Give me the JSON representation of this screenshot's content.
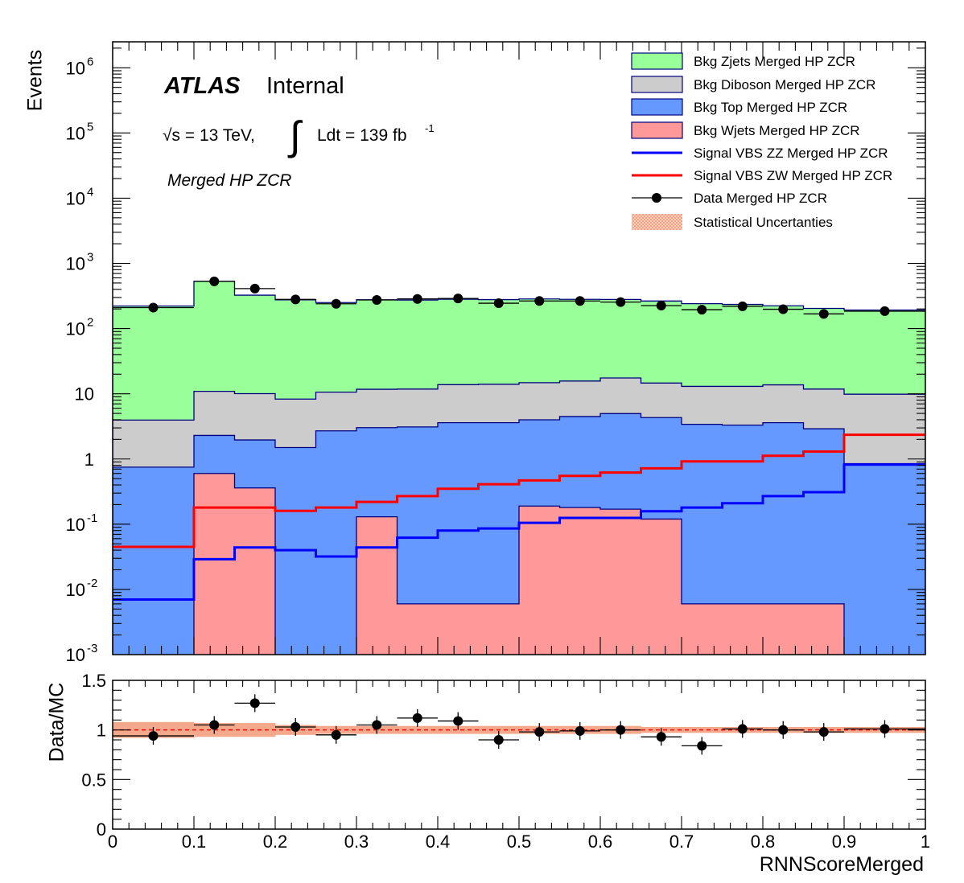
{
  "chart_data": [
    {
      "type": "bar",
      "subtype": "stacked-step-histogram",
      "bin_edges": [
        0,
        0.05,
        0.1,
        0.15,
        0.2,
        0.25,
        0.3,
        0.35,
        0.4,
        0.45,
        0.5,
        0.55,
        0.6,
        0.65,
        0.7,
        0.75,
        0.8,
        0.85,
        0.9,
        0.95,
        1
      ],
      "xlabel": "",
      "ylabel": "Events",
      "yscale": "log",
      "xlim": [
        0,
        1
      ],
      "ylim": [
        0.001,
        2500000
      ],
      "yticks": [
        {
          "label": "10",
          "sup": "-3",
          "value": 0.001
        },
        {
          "label": "10",
          "sup": "-2",
          "value": 0.01
        },
        {
          "label": "10",
          "sup": "-1",
          "value": 0.1
        },
        {
          "label": "1",
          "sup": "",
          "value": 1
        },
        {
          "label": "10",
          "sup": "",
          "value": 10
        },
        {
          "label": "10",
          "sup": "2",
          "value": 100
        },
        {
          "label": "10",
          "sup": "3",
          "value": 1000
        },
        {
          "label": "10",
          "sup": "4",
          "value": 10000
        },
        {
          "label": "10",
          "sup": "5",
          "value": 100000
        },
        {
          "label": "10",
          "sup": "6",
          "value": 1000000
        }
      ],
      "stacked_series": [
        {
          "name": "Bkg Wjets Merged HP ZCR",
          "color": "#ff9999",
          "values": [
            0,
            0,
            0.6,
            0.36,
            0,
            0,
            0.13,
            0.006,
            0.006,
            0.006,
            0.19,
            0.18,
            0.17,
            0.12,
            0.006,
            0.006,
            0.006,
            0.006,
            0,
            0
          ]
        },
        {
          "name": "Bkg Top Merged HP ZCR",
          "color": "#6699ff",
          "values": [
            0.75,
            0.75,
            1.7,
            1.6,
            1.5,
            2.7,
            2.9,
            3.1,
            3.6,
            3.6,
            3.8,
            4.3,
            4.8,
            4.2,
            3.4,
            3.3,
            3.6,
            2.9,
            0.85,
            0.85
          ]
        },
        {
          "name": "Bkg Diboson Merged HP ZCR",
          "color": "#cccccc",
          "values": [
            3.2,
            3.2,
            8.6,
            8.1,
            6.8,
            7.9,
            8.7,
            8.7,
            10.2,
            10.4,
            10.8,
            11.2,
            12.5,
            10.3,
            9.6,
            9.7,
            10.1,
            8.9,
            9.0,
            9.0
          ]
        },
        {
          "name": "Bkg Zjets Merged HP ZCR",
          "color": "#99ff99",
          "values": [
            218,
            218,
            520,
            315,
            268,
            240,
            265,
            262,
            268,
            264,
            270,
            265,
            262,
            250,
            228,
            222,
            210,
            192,
            183,
            183
          ]
        }
      ],
      "signal_series": [
        {
          "name": "Signal VBS ZZ Merged HP ZCR",
          "color": "#0000ff",
          "values": [
            0.007,
            0.007,
            0.029,
            0.044,
            0.04,
            0.032,
            0.044,
            0.062,
            0.08,
            0.086,
            0.105,
            0.125,
            0.125,
            0.158,
            0.18,
            0.21,
            0.27,
            0.31,
            0.82,
            0.82
          ]
        },
        {
          "name": "Signal VBS ZW Merged HP ZCR",
          "color": "#ff0000",
          "values": [
            0.045,
            0.045,
            0.18,
            0.18,
            0.16,
            0.18,
            0.22,
            0.27,
            0.35,
            0.41,
            0.47,
            0.55,
            0.62,
            0.72,
            0.92,
            0.92,
            1.12,
            1.3,
            2.35,
            2.35
          ]
        }
      ],
      "data_series": {
        "name": "Data Merged HP ZCR",
        "x": [
          0.05,
          0.125,
          0.175,
          0.225,
          0.275,
          0.325,
          0.375,
          0.425,
          0.475,
          0.525,
          0.575,
          0.625,
          0.675,
          0.725,
          0.775,
          0.825,
          0.875,
          0.95
        ],
        "y": [
          210,
          530,
          410,
          280,
          240,
          275,
          285,
          290,
          245,
          265,
          265,
          255,
          225,
          195,
          220,
          198,
          168,
          185
        ]
      },
      "legend": {
        "placement": "top-right",
        "entries": [
          "Bkg Zjets Merged HP ZCR",
          "Bkg Diboson Merged HP ZCR",
          "Bkg Top Merged HP ZCR",
          "Bkg Wjets Merged HP ZCR",
          "Signal VBS ZZ Merged HP ZCR",
          "Signal VBS ZW Merged HP ZCR",
          "Data Merged HP ZCR",
          "Statistical Uncertanties"
        ]
      },
      "uncertainty_color": "#f4a080",
      "annotations": {
        "atlas": "ATLAS",
        "internal": "Internal",
        "energy": "√s = 13 TeV,",
        "lumi": "Ldt = 139 fb",
        "lumi_sup": "-1",
        "region": "Merged HP ZCR"
      }
    },
    {
      "type": "scatter",
      "subtype": "ratio",
      "xlabel": "RNNScoreMerged",
      "ylabel": "Data/MC",
      "xlim": [
        0,
        1
      ],
      "ylim": [
        0,
        1.5
      ],
      "xticks": [
        "0",
        "0.1",
        "0.2",
        "0.3",
        "0.4",
        "0.5",
        "0.6",
        "0.7",
        "0.8",
        "0.9",
        "1"
      ],
      "yticks": [
        "0",
        "0.5",
        "1",
        "1.5"
      ],
      "reference_line": 1,
      "x": [
        0.05,
        0.125,
        0.175,
        0.225,
        0.275,
        0.325,
        0.375,
        0.425,
        0.475,
        0.525,
        0.575,
        0.625,
        0.675,
        0.725,
        0.775,
        0.825,
        0.875,
        0.95
      ],
      "y": [
        0.94,
        1.05,
        1.27,
        1.03,
        0.95,
        1.05,
        1.12,
        1.09,
        0.9,
        0.98,
        0.99,
        1.0,
        0.93,
        0.84,
        1.01,
        1.0,
        0.98,
        1.01
      ],
      "uncertainty_halfwidth": [
        0.08,
        0.07,
        0.07,
        0.05,
        0.04,
        0.04,
        0.04,
        0.04,
        0.04,
        0.04,
        0.04,
        0.04,
        0.03,
        0.03,
        0.03,
        0.03,
        0.03,
        0.03
      ]
    }
  ]
}
